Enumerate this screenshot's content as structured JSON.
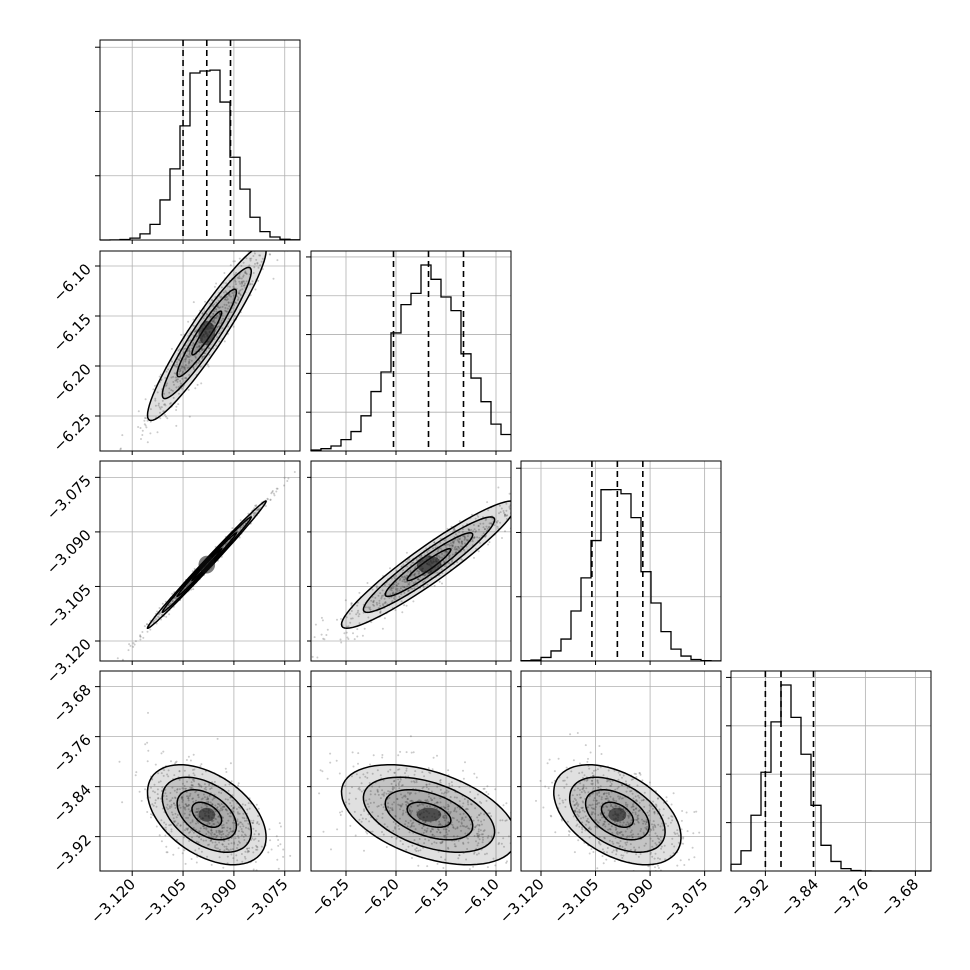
{
  "chart_data": {
    "type": "scatter",
    "title": "",
    "colors": {
      "ink": "#000000",
      "grid": "#b0b0b0",
      "samples": "#6a6a6a"
    },
    "grid": true,
    "parameters": [
      {
        "range": [
          -3.1295,
          -3.0705
        ],
        "ticks": [
          -3.12,
          -3.105,
          -3.09,
          -3.075
        ],
        "tick_labels": [
          "−3.120",
          "−3.105",
          "−3.090",
          "−3.075"
        ],
        "quantiles": [
          -3.105,
          -3.098,
          -3.091
        ],
        "mean": -3.098,
        "sd": 0.007,
        "hist_peak": 0.96
      },
      {
        "range": [
          -6.285,
          -6.085
        ],
        "ticks": [
          -6.25,
          -6.2,
          -6.15,
          -6.1
        ],
        "tick_labels": [
          "−6.25",
          "−6.20",
          "−6.15",
          "−6.10"
        ],
        "quantiles": [
          -6.2025,
          -6.1675,
          -6.1325
        ],
        "mean": -6.167,
        "sd": 0.035,
        "hist_peak": 0.96
      },
      {
        "range": [
          -3.1255,
          -3.0705
        ],
        "ticks": [
          -3.12,
          -3.105,
          -3.09,
          -3.075
        ],
        "tick_labels": [
          "−3.120",
          "−3.105",
          "−3.090",
          "−3.075"
        ],
        "quantiles": [
          -3.106,
          -3.099,
          -3.092
        ],
        "mean": -3.099,
        "sd": 0.007,
        "hist_peak": 0.96
      },
      {
        "range": [
          -3.975,
          -3.655
        ],
        "ticks": [
          -3.92,
          -3.84,
          -3.76,
          -3.68
        ],
        "tick_labels": [
          "−3.92",
          "−3.84",
          "−3.76",
          "−3.68"
        ],
        "quantiles": [
          -3.92,
          -3.895,
          -3.843
        ],
        "mean": -3.885,
        "sd": 0.032,
        "hist_peak": 0.96
      }
    ],
    "histograms": [
      {
        "param": 0,
        "y_ticks_shown": 3
      },
      {
        "param": 1,
        "y_ticks_shown": 5
      },
      {
        "param": 2,
        "y_ticks_shown": 3
      },
      {
        "param": 3,
        "y_ticks_shown": 4
      }
    ],
    "pairs": [
      {
        "x": 0,
        "y": 1,
        "correlation": 0.94
      },
      {
        "x": 0,
        "y": 2,
        "correlation": 0.995
      },
      {
        "x": 1,
        "y": 2,
        "correlation": 0.94
      },
      {
        "x": 0,
        "y": 3,
        "correlation": -0.45
      },
      {
        "x": 1,
        "y": 3,
        "correlation": -0.45
      },
      {
        "x": 2,
        "y": 3,
        "correlation": -0.45
      }
    ],
    "contour_levels_sigma": [
      0.5,
      1.0,
      1.5,
      2.0
    ],
    "xlabel": "",
    "ylabel": ""
  }
}
